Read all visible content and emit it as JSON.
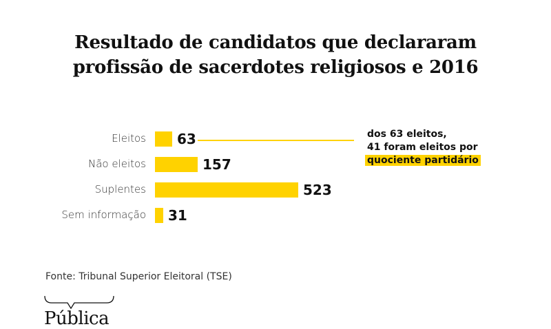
{
  "chart_data": {
    "type": "bar",
    "orientation": "horizontal",
    "title": "Resultado de candidatos que declararam profissão de sacerdotes religiosos e 2016",
    "title_lines": [
      "Resultado de candidatos que declararam",
      "profissão de sacerdotes religiosos e 2016"
    ],
    "categories": [
      "Eleitos",
      "Não eleitos",
      "Suplentes",
      "Sem informação"
    ],
    "values": [
      63,
      157,
      523,
      31
    ],
    "data_labels": [
      "63",
      "157",
      "523",
      "31"
    ],
    "xlabel": "",
    "ylabel": "",
    "xlim": [
      0,
      523
    ],
    "grid": false,
    "bar_color": "#FFD200",
    "annotation": {
      "target_category": "Eleitos",
      "lines": [
        "dos 63 eleitos,",
        "41 foram eleitos por"
      ],
      "highlight": "quociente partidário"
    }
  },
  "source": "Fonte: Tribunal Superior Eleitoral (TSE)",
  "logo": "Pública",
  "colors": {
    "accent": "#FFD200",
    "text": "#111111"
  }
}
